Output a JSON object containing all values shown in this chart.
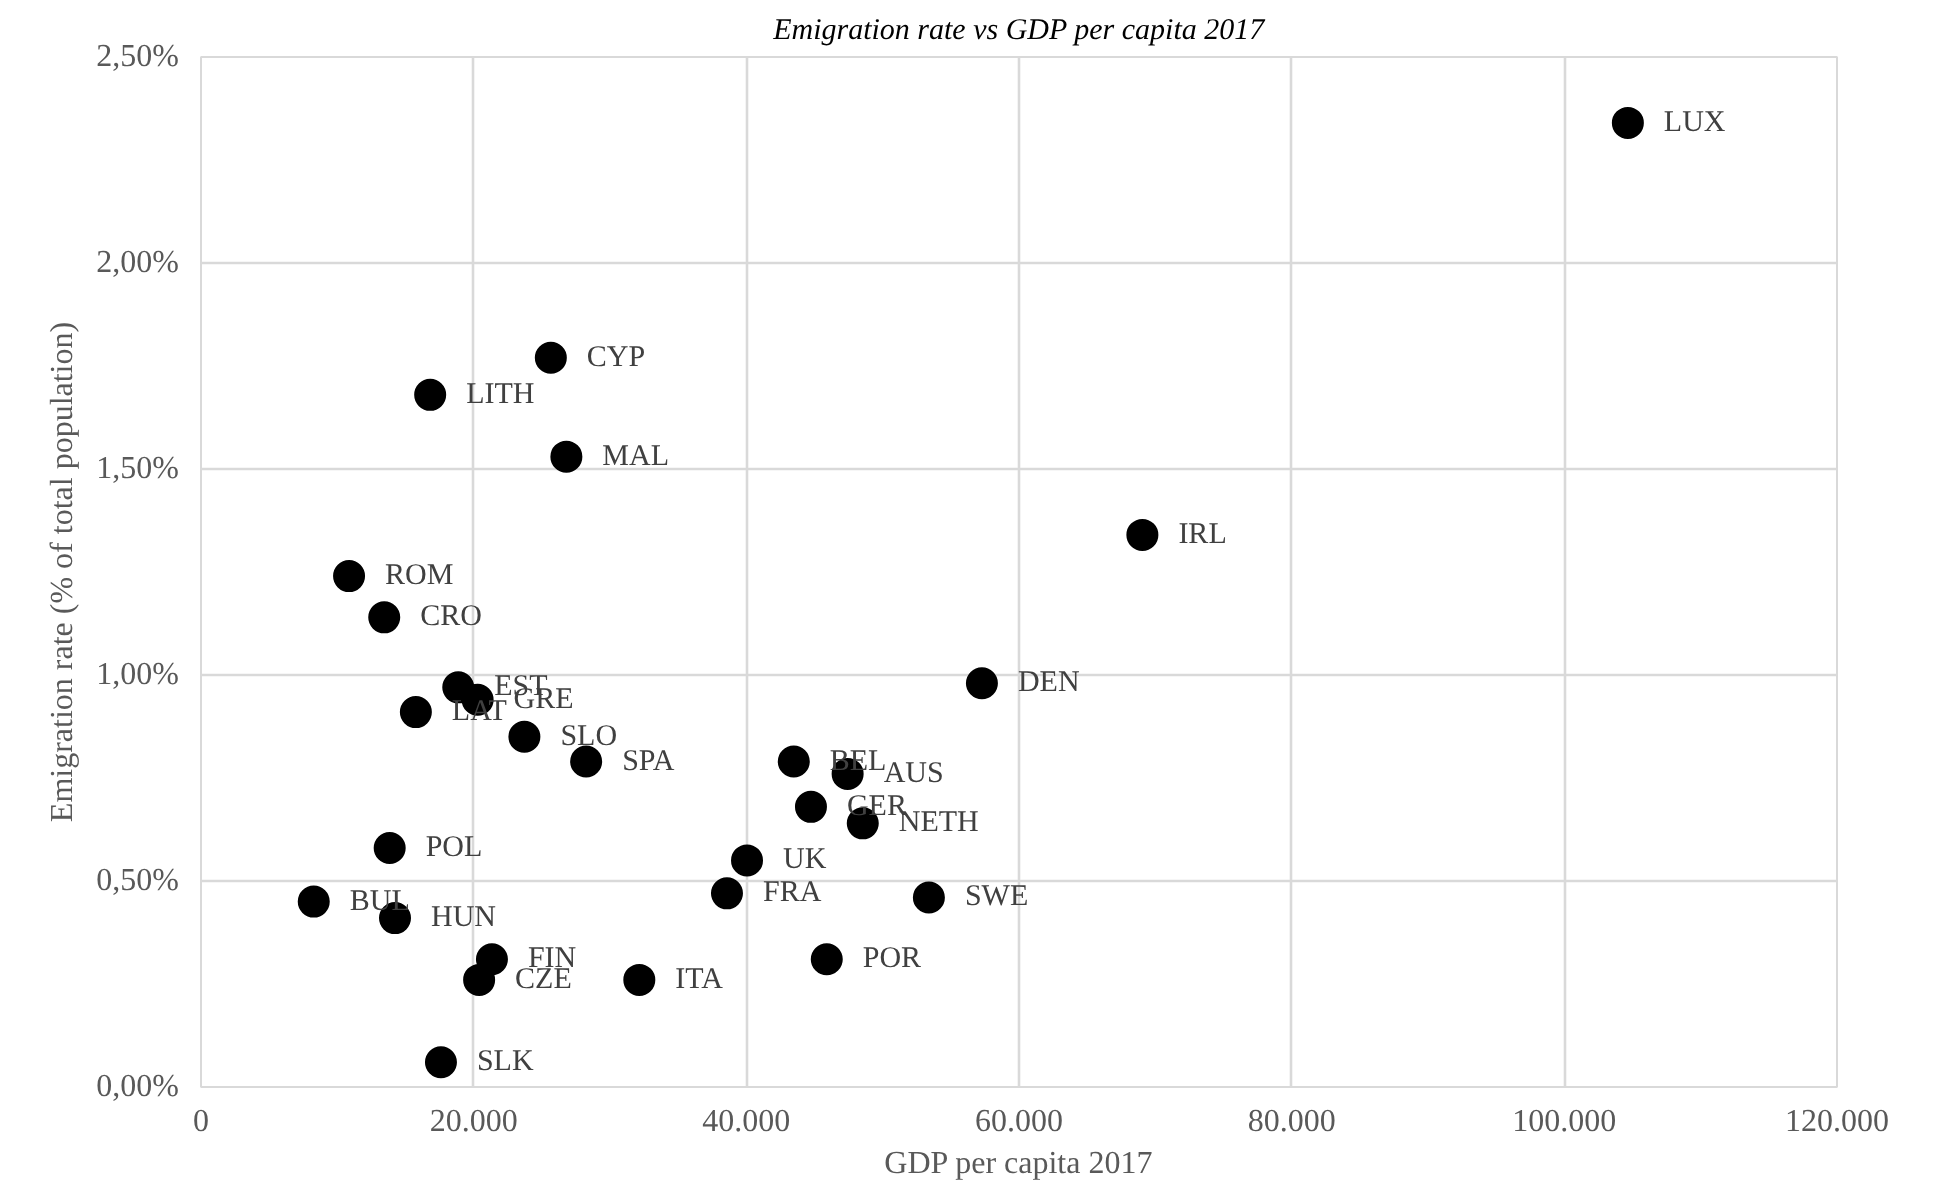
{
  "chart_data": {
    "type": "scatter",
    "title": "Emigration rate vs GDP per capita 2017",
    "xlabel": "GDP per capita 2017",
    "ylabel": "Emigration rate (% of total population)",
    "x": [
      104660,
      69050,
      57280,
      25660,
      16810,
      26800,
      10860,
      13440,
      15760,
      18870,
      20290,
      23720,
      28250,
      43480,
      47430,
      44740,
      48540,
      13840,
      40050,
      38580,
      53390,
      8270,
      14230,
      45900,
      21340,
      20400,
      32150,
      17600
    ],
    "values": [
      2.34,
      1.34,
      0.98,
      1.77,
      1.68,
      1.53,
      1.24,
      1.14,
      0.91,
      0.97,
      0.94,
      0.85,
      0.79,
      0.79,
      0.76,
      0.68,
      0.64,
      0.58,
      0.55,
      0.47,
      0.46,
      0.45,
      0.41,
      0.31,
      0.31,
      0.26,
      0.26,
      0.06
    ],
    "color": "#000000",
    "marker": "circle",
    "grid": true,
    "legend": false,
    "xlim": [
      0,
      120000
    ],
    "ylim": [
      0,
      2.5
    ],
    "xticks": [
      {
        "value": 0,
        "label": "0"
      },
      {
        "value": 20000,
        "label": "20.000"
      },
      {
        "value": 40000,
        "label": "40.000"
      },
      {
        "value": 60000,
        "label": "60.000"
      },
      {
        "value": 80000,
        "label": "80.000"
      },
      {
        "value": 100000,
        "label": "100.000"
      },
      {
        "value": 120000,
        "label": "120.000"
      }
    ],
    "yticks": [
      {
        "value": 0,
        "label": "0,00%"
      },
      {
        "value": 0.5,
        "label": "0,50%"
      },
      {
        "value": 1,
        "label": "1,00%"
      },
      {
        "value": 1.5,
        "label": "1,50%"
      },
      {
        "value": 2,
        "label": "2,00%"
      },
      {
        "value": 2.5,
        "label": "2,50%"
      }
    ],
    "annotations": [
      {
        "text": "LUX",
        "x": 104660,
        "y": 2.34
      },
      {
        "text": "IRL",
        "x": 69050,
        "y": 1.34
      },
      {
        "text": "DEN",
        "x": 57280,
        "y": 0.98
      },
      {
        "text": "CYP",
        "x": 25660,
        "y": 1.77
      },
      {
        "text": "LITH",
        "x": 16810,
        "y": 1.68
      },
      {
        "text": "MAL",
        "x": 26800,
        "y": 1.53
      },
      {
        "text": "ROM",
        "x": 10860,
        "y": 1.24
      },
      {
        "text": "CRO",
        "x": 13440,
        "y": 1.14
      },
      {
        "text": "LAT",
        "x": 15760,
        "y": 0.91
      },
      {
        "text": "EST",
        "x": 18870,
        "y": 0.97
      },
      {
        "text": "GRE",
        "x": 20290,
        "y": 0.94
      },
      {
        "text": "SLO",
        "x": 23720,
        "y": 0.85
      },
      {
        "text": "SPA",
        "x": 28250,
        "y": 0.79
      },
      {
        "text": "BEL",
        "x": 43480,
        "y": 0.79
      },
      {
        "text": "AUS",
        "x": 47430,
        "y": 0.76
      },
      {
        "text": "GER",
        "x": 44740,
        "y": 0.68
      },
      {
        "text": "NETH",
        "x": 48540,
        "y": 0.64
      },
      {
        "text": "POL",
        "x": 13840,
        "y": 0.58
      },
      {
        "text": "UK",
        "x": 40050,
        "y": 0.55
      },
      {
        "text": "FRA",
        "x": 38580,
        "y": 0.47
      },
      {
        "text": "SWE",
        "x": 53390,
        "y": 0.46
      },
      {
        "text": "BUL",
        "x": 8270,
        "y": 0.45
      },
      {
        "text": "HUN",
        "x": 14230,
        "y": 0.41
      },
      {
        "text": "POR",
        "x": 45900,
        "y": 0.31
      },
      {
        "text": "FIN",
        "x": 21340,
        "y": 0.31
      },
      {
        "text": "CZE",
        "x": 20400,
        "y": 0.26
      },
      {
        "text": "ITA",
        "x": 32150,
        "y": 0.26
      },
      {
        "text": "SLK",
        "x": 17600,
        "y": 0.06
      }
    ]
  }
}
